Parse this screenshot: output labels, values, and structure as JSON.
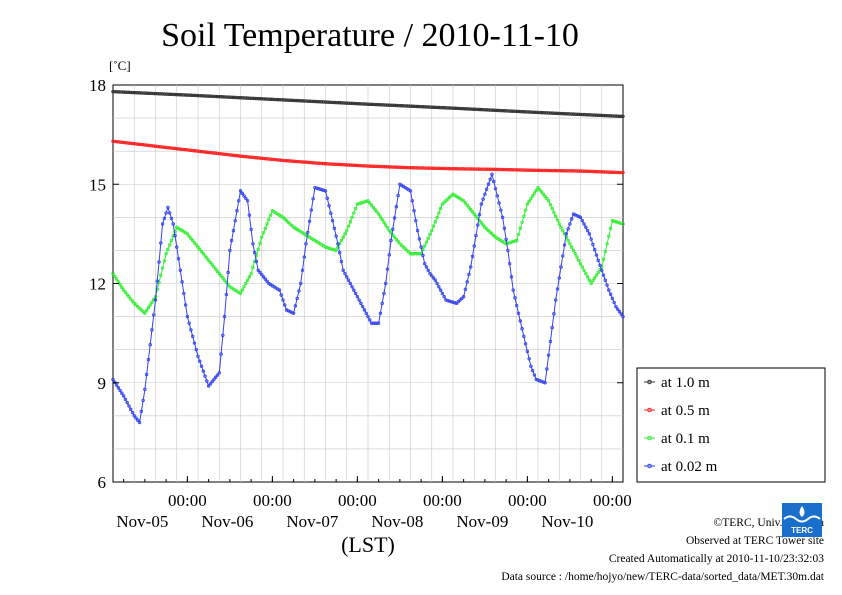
{
  "chart_data": {
    "type": "line",
    "title": "Soil Temperature / 2010-11-10",
    "unit": "[˚C]",
    "xlabel": "(LST)",
    "ylim": [
      6,
      18
    ],
    "yticks": [
      6,
      9,
      12,
      15,
      18
    ],
    "x_range_hours": [
      0,
      144
    ],
    "xticks": [
      {
        "top": "00:00",
        "bottom": "Nov-05"
      },
      {
        "top": "00:00",
        "bottom": "Nov-06"
      },
      {
        "top": "00:00",
        "bottom": "Nov-07"
      },
      {
        "top": "00:00",
        "bottom": "Nov-08"
      },
      {
        "top": "00:00",
        "bottom": "Nov-09"
      },
      {
        "top": "00:00",
        "bottom": "Nov-10"
      }
    ],
    "grid": true,
    "legend_position": "right",
    "series": [
      {
        "name": "at 1.0 m",
        "color": "#333333",
        "x": [
          0,
          24,
          48,
          72,
          96,
          120,
          144
        ],
        "y": [
          17.8,
          17.68,
          17.55,
          17.42,
          17.3,
          17.17,
          17.05
        ]
      },
      {
        "name": "at 0.5 m",
        "color": "#ff2222",
        "x": [
          0,
          12,
          24,
          36,
          48,
          60,
          72,
          84,
          96,
          108,
          120,
          132,
          144
        ],
        "y": [
          16.3,
          16.15,
          16.0,
          15.85,
          15.72,
          15.62,
          15.55,
          15.5,
          15.47,
          15.45,
          15.42,
          15.4,
          15.35
        ]
      },
      {
        "name": "at 0.1 m",
        "color": "#33ee33",
        "x": [
          0,
          3,
          6,
          9,
          12,
          15,
          18,
          21,
          24,
          27,
          30,
          33,
          36,
          39,
          42,
          45,
          48,
          51,
          54,
          57,
          60,
          63,
          66,
          69,
          72,
          75,
          78,
          81,
          84,
          87,
          90,
          93,
          96,
          99,
          102,
          105,
          108,
          111,
          114,
          117,
          120,
          123,
          126,
          129,
          132,
          135,
          138,
          141,
          144
        ],
        "y": [
          12.3,
          11.8,
          11.4,
          11.1,
          11.6,
          12.9,
          13.7,
          13.5,
          13.1,
          12.7,
          12.3,
          11.9,
          11.7,
          12.3,
          13.4,
          14.2,
          14.0,
          13.7,
          13.5,
          13.3,
          13.1,
          13.0,
          13.6,
          14.4,
          14.5,
          14.1,
          13.6,
          13.2,
          12.9,
          12.9,
          13.6,
          14.4,
          14.7,
          14.5,
          14.1,
          13.7,
          13.4,
          13.2,
          13.3,
          14.4,
          14.9,
          14.5,
          13.8,
          13.2,
          12.6,
          12.0,
          12.5,
          13.9,
          13.8
        ]
      },
      {
        "name": "at 0.02 m",
        "color": "#3344ee",
        "x": [
          0,
          3,
          6,
          7.5,
          9,
          12,
          14,
          15.5,
          17,
          19,
          21,
          24,
          27,
          30,
          31.5,
          33,
          36,
          38,
          39.5,
          41,
          44,
          47,
          49,
          51,
          53,
          54.5,
          57,
          60,
          62,
          63.5,
          65,
          68,
          71,
          73,
          75,
          77,
          78.5,
          81,
          84,
          86,
          88,
          89.5,
          91,
          94,
          97,
          99,
          101,
          104,
          107,
          110,
          111.5,
          113,
          116,
          118,
          119.5,
          122,
          125,
          128,
          130,
          132,
          134.5,
          137,
          140,
          142,
          144
        ],
        "y": [
          9.1,
          8.6,
          8.0,
          7.8,
          8.8,
          11.5,
          13.8,
          14.3,
          13.8,
          12.4,
          11.0,
          9.8,
          8.9,
          9.3,
          11.0,
          13.0,
          14.8,
          14.5,
          13.2,
          12.4,
          12.0,
          11.8,
          11.2,
          11.1,
          12.0,
          13.2,
          14.9,
          14.8,
          13.9,
          13.2,
          12.4,
          11.8,
          11.2,
          10.8,
          10.8,
          12.0,
          13.3,
          15.0,
          14.8,
          13.6,
          12.6,
          12.3,
          12.1,
          11.5,
          11.4,
          11.6,
          12.5,
          14.4,
          15.3,
          14.0,
          13.0,
          11.8,
          10.4,
          9.5,
          9.1,
          9.0,
          11.5,
          13.5,
          14.1,
          14.0,
          13.5,
          12.7,
          11.8,
          11.3,
          11.0
        ]
      }
    ]
  },
  "footer": {
    "copyright": "©TERC, Univ. Tsukuba",
    "observed": "Observed at TERC Tower site",
    "created": "Created Automatically at 2010-11-10/23:32:03",
    "source": "Data source : /home/hojyo/new/TERC-data/sorted_data/MET.30m.dat"
  },
  "logo": {
    "text": "TERC",
    "color": "#1a6fcc"
  }
}
